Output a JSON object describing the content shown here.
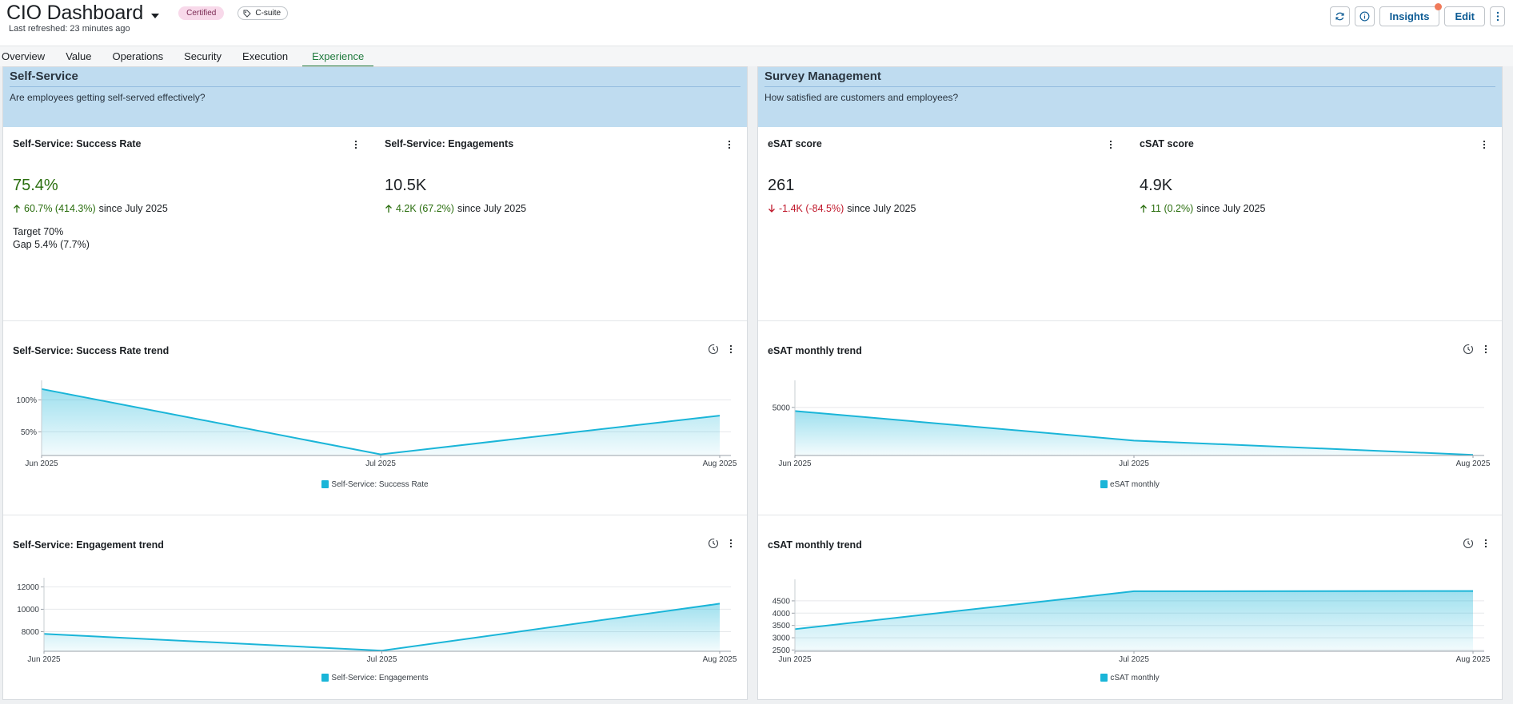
{
  "header": {
    "title": "CIO Dashboard",
    "badge_certified": "Certified",
    "badge_tag": "C-suite",
    "refreshed": "Last refreshed: 23 minutes ago",
    "insights_label": "Insights",
    "edit_label": "Edit"
  },
  "tabs": [
    {
      "label": "Overview"
    },
    {
      "label": "Value"
    },
    {
      "label": "Operations"
    },
    {
      "label": "Security"
    },
    {
      "label": "Execution"
    },
    {
      "label": "Experience",
      "active": true
    }
  ],
  "groups": {
    "self_service": {
      "title": "Self-Service",
      "description": "Are employees getting self-served effectively?",
      "kpis": [
        {
          "title": "Self-Service: Success Rate",
          "value": "75.4%",
          "delta": "60.7% (414.3%)",
          "since": "since July 2025",
          "direction": "up",
          "target_label": "Target",
          "target_value": "70%",
          "gap_label": "Gap",
          "gap_value": "5.4% (7.7%)"
        },
        {
          "title": "Self-Service: Engagements",
          "value": "10.5K",
          "delta": "4.2K (67.2%)",
          "since": "since July 2025",
          "direction": "up"
        }
      ],
      "charts": [
        {
          "title": "Self-Service: Success Rate trend",
          "legend": "Self-Service: Success Rate"
        },
        {
          "title": "Self-Service: Engagement trend",
          "legend": "Self-Service: Engagements"
        }
      ]
    },
    "survey": {
      "title": "Survey Management",
      "description": "How satisfied are customers and employees?",
      "kpis": [
        {
          "title": "eSAT score",
          "value": "261",
          "delta": "-1.4K (-84.5%)",
          "since": "since July 2025",
          "direction": "down"
        },
        {
          "title": "cSAT score",
          "value": "4.9K",
          "delta": "11 (0.2%)",
          "since": "since July 2025",
          "direction": "up"
        }
      ],
      "charts": [
        {
          "title": "eSAT monthly trend",
          "legend": "eSAT monthly"
        },
        {
          "title": "cSAT monthly trend",
          "legend": "cSAT monthly"
        }
      ]
    }
  },
  "colors": {
    "accent": "#1ab5d8",
    "positive": "#2a6e0e",
    "negative": "#c0182b",
    "group_header": "#bfdcf0",
    "active_tab": "#1f7a3d"
  },
  "chart_data": [
    {
      "type": "area",
      "title": "Self-Service: Success Rate trend",
      "categories": [
        "Jun 2025",
        "Jul 2025",
        "Aug 2025"
      ],
      "series": [
        {
          "name": "Self-Service: Success Rate",
          "values": [
            1.17,
            0.147,
            0.754
          ]
        }
      ],
      "yticks": [
        {
          "value": 0.5,
          "label": "50%"
        },
        {
          "value": 1.0,
          "label": "100%"
        }
      ],
      "ylim": [
        0.13,
        1.18
      ]
    },
    {
      "type": "area",
      "title": "Self-Service: Engagement trend",
      "categories": [
        "Jun 2025",
        "Jul 2025",
        "Aug 2025"
      ],
      "series": [
        {
          "name": "Self-Service: Engagements",
          "values": [
            7800,
            6300,
            10500
          ]
        }
      ],
      "yticks": [
        {
          "value": 8000,
          "label": "8000"
        },
        {
          "value": 10000,
          "label": "10000"
        },
        {
          "value": 12000,
          "label": "12000"
        }
      ],
      "ylim": [
        6250,
        12100
      ]
    },
    {
      "type": "area",
      "title": "eSAT monthly trend",
      "categories": [
        "Jun 2025",
        "Jul 2025",
        "Aug 2025"
      ],
      "series": [
        {
          "name": "eSAT monthly",
          "values": [
            4640,
            1690,
            261
          ]
        }
      ],
      "yticks": [
        {
          "value": 5000,
          "label": "5000"
        }
      ],
      "ylim": [
        200,
        6900
      ]
    },
    {
      "type": "area",
      "title": "cSAT monthly trend",
      "categories": [
        "Jun 2025",
        "Jul 2025",
        "Aug 2025"
      ],
      "series": [
        {
          "name": "cSAT monthly",
          "values": [
            3350,
            4890,
            4900
          ]
        }
      ],
      "yticks": [
        {
          "value": 2500,
          "label": "2500"
        },
        {
          "value": 3000,
          "label": "3000"
        },
        {
          "value": 3500,
          "label": "3500"
        },
        {
          "value": 4000,
          "label": "4000"
        },
        {
          "value": 4500,
          "label": "4500"
        }
      ],
      "ylim": [
        2450,
        5050
      ]
    }
  ]
}
